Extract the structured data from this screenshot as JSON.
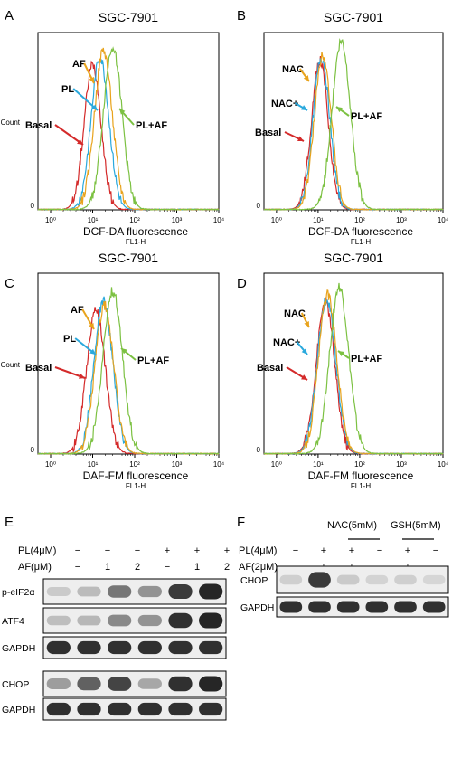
{
  "colors": {
    "basal": "#d42a2a",
    "pl": "#2aa9dd",
    "af": "#e8a31c",
    "nac": "#e8a31c",
    "nac_plus": "#2aa9dd",
    "pl_af": "#7cc142"
  },
  "chart_data": [
    {
      "panel": "A",
      "type": "line",
      "title": "SGC-7901",
      "xlabel": "DCF-DA fluorescence",
      "xsub": "FL1-H",
      "ylabel": "Count",
      "x_scale": "log",
      "xlim": [
        0.5,
        10000
      ],
      "ylim": [
        0,
        100
      ],
      "x_ticks": [
        "10⁰",
        "10¹",
        "10²",
        "10³",
        "10⁴"
      ],
      "y_tick": "0",
      "series": [
        {
          "name": "Basal",
          "color": "#d42a2a",
          "center": 10,
          "width": 0.2,
          "peak": 82
        },
        {
          "name": "PL",
          "color": "#2aa9dd",
          "center": 15,
          "width": 0.21,
          "peak": 86
        },
        {
          "name": "AF",
          "color": "#e8a31c",
          "center": 18,
          "width": 0.21,
          "peak": 90
        },
        {
          "name": "PL+AF",
          "color": "#7cc142",
          "center": 30,
          "width": 0.22,
          "peak": 92
        }
      ]
    },
    {
      "panel": "B",
      "type": "line",
      "title": "SGC-7901",
      "xlabel": "DCF-DA fluorescence",
      "xsub": "FL1-H",
      "ylabel": "",
      "x_scale": "log",
      "xlim": [
        0.5,
        10000
      ],
      "ylim": [
        0,
        100
      ],
      "x_ticks": [
        "10⁰",
        "10¹",
        "10²",
        "10³",
        "10⁴"
      ],
      "y_tick": "0",
      "series": [
        {
          "name": "Basal",
          "color": "#d42a2a",
          "center": 11,
          "width": 0.2,
          "peak": 84
        },
        {
          "name": "NAC+",
          "color": "#2aa9dd",
          "center": 12,
          "width": 0.2,
          "peak": 86
        },
        {
          "name": "NAC",
          "color": "#e8a31c",
          "center": 13,
          "width": 0.2,
          "peak": 88
        },
        {
          "name": "PL+AF",
          "color": "#7cc142",
          "center": 36,
          "width": 0.22,
          "peak": 95
        }
      ]
    },
    {
      "panel": "C",
      "type": "line",
      "title": "SGC-7901",
      "xlabel": "DAF-FM fluorescence",
      "xsub": "FL1-H",
      "ylabel": "Count",
      "x_scale": "log",
      "xlim": [
        0.5,
        10000
      ],
      "ylim": [
        0,
        100
      ],
      "x_ticks": [
        "10⁰",
        "10¹",
        "10²",
        "10³",
        "10⁴"
      ],
      "y_tick": "0",
      "series": [
        {
          "name": "Basal",
          "color": "#d42a2a",
          "center": 12,
          "width": 0.22,
          "peak": 80
        },
        {
          "name": "PL",
          "color": "#2aa9dd",
          "center": 18,
          "width": 0.22,
          "peak": 85
        },
        {
          "name": "AF",
          "color": "#e8a31c",
          "center": 19,
          "width": 0.22,
          "peak": 82
        },
        {
          "name": "PL+AF",
          "color": "#7cc142",
          "center": 30,
          "width": 0.23,
          "peak": 90
        }
      ]
    },
    {
      "panel": "D",
      "type": "line",
      "title": "SGC-7901",
      "xlabel": "DAF-FM fluorescence",
      "xsub": "FL1-H",
      "ylabel": "",
      "x_scale": "log",
      "xlim": [
        0.5,
        10000
      ],
      "ylim": [
        0,
        100
      ],
      "x_ticks": [
        "10⁰",
        "10¹",
        "10²",
        "10³",
        "10⁴"
      ],
      "y_tick": "0",
      "series": [
        {
          "name": "Basal",
          "color": "#d42a2a",
          "center": 15,
          "width": 0.22,
          "peak": 84
        },
        {
          "name": "NAC+",
          "color": "#2aa9dd",
          "center": 16,
          "width": 0.22,
          "peak": 86
        },
        {
          "name": "NAC",
          "color": "#e8a31c",
          "center": 17,
          "width": 0.22,
          "peak": 88
        },
        {
          "name": "PL+AF",
          "color": "#7cc142",
          "center": 32,
          "width": 0.23,
          "peak": 92
        }
      ]
    }
  ],
  "panels": {
    "E": {
      "letter": "E",
      "rows": [
        {
          "label": "PL(4μM)",
          "values": [
            "−",
            "−",
            "−",
            "+",
            "+",
            "+"
          ]
        },
        {
          "label": "AF(μM)",
          "values": [
            "−",
            "1",
            "2",
            "−",
            "1",
            "2"
          ]
        }
      ],
      "blots": [
        {
          "label": "p-eIF2α",
          "intensity": [
            0.12,
            0.2,
            0.55,
            0.4,
            0.85,
            0.95
          ]
        },
        {
          "label": "ATF4",
          "intensity": [
            0.18,
            0.22,
            0.45,
            0.4,
            0.9,
            0.95
          ]
        },
        {
          "label": "GAPDH",
          "intensity": [
            0.9,
            0.9,
            0.9,
            0.9,
            0.9,
            0.9
          ]
        },
        {
          "label": "CHOP",
          "intensity": [
            0.35,
            0.65,
            0.8,
            0.3,
            0.9,
            0.95
          ]
        },
        {
          "label": "GAPDH",
          "intensity": [
            0.9,
            0.9,
            0.9,
            0.9,
            0.9,
            0.9
          ]
        }
      ]
    },
    "F": {
      "letter": "F",
      "groups": [
        "NAC(5mM)",
        "GSH(5mM)"
      ],
      "rows": [
        {
          "label": "PL(4μM)",
          "values": [
            "−",
            "+",
            "+",
            "−",
            "+",
            "−"
          ]
        },
        {
          "label": "AF(2μM)",
          "values": [
            "−",
            "+",
            "+",
            "−",
            "+",
            "−"
          ]
        }
      ],
      "blots": [
        {
          "label": "CHOP",
          "intensity": [
            0.1,
            0.85,
            0.12,
            0.08,
            0.1,
            0.06
          ]
        },
        {
          "label": "GAPDH",
          "intensity": [
            0.9,
            0.9,
            0.9,
            0.9,
            0.9,
            0.9
          ]
        }
      ]
    }
  }
}
